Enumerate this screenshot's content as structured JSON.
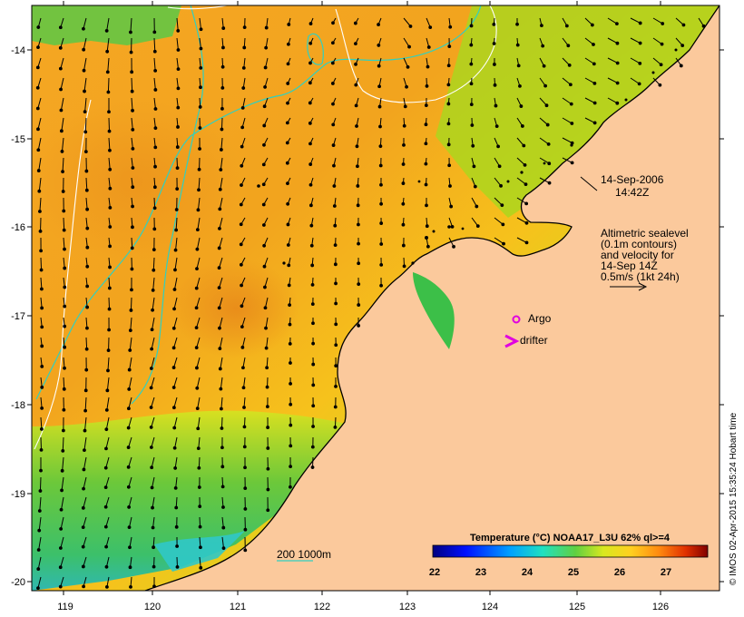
{
  "map": {
    "timestamp_date": "14-Sep-2006",
    "timestamp_time": "14:42Z",
    "legend_lines": [
      "Altimetric sealevel",
      "(0.1m contours)",
      "and velocity for",
      "14-Sep 14Z",
      "0.5m/s (1kt 24h)"
    ],
    "argo_label": "Argo",
    "drifter_label": "drifter",
    "depth_label": "200  1000m",
    "y_ticks": [
      "-14",
      "-15",
      "-16",
      "-17",
      "-18",
      "-19",
      "-20"
    ],
    "x_ticks": [
      "119",
      "120",
      "121",
      "122",
      "123",
      "124",
      "125",
      "126"
    ],
    "colorbar": {
      "title": "Temperature (°C) NOAA17_L3U 62% ql>=4",
      "ticks": [
        "22",
        "23",
        "24",
        "25",
        "26",
        "27"
      ]
    },
    "credit": "© IMOS 02-Apr-2015 15:35:24 Hobart time",
    "colors": {
      "land": "#fbc99c",
      "argo": "#e000e0",
      "drifter": "#e000e0",
      "depth_contour": "#30d0c0",
      "sealevel_contour": "#ffffff"
    }
  }
}
